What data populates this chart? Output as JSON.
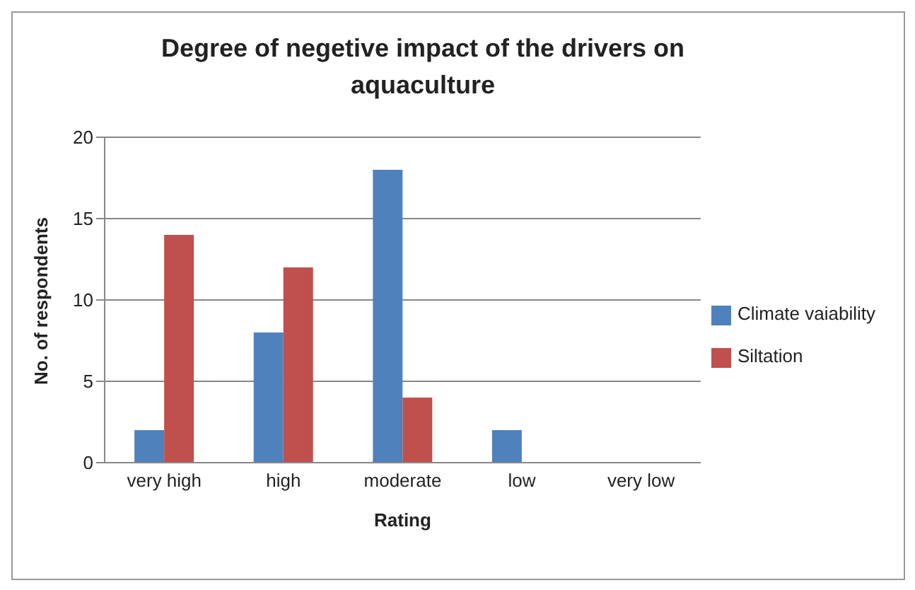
{
  "chart_data": {
    "type": "bar",
    "title": "Degree of negetive impact of the drivers on aquaculture",
    "xlabel": "Rating",
    "ylabel": "No. of respondents",
    "categories": [
      "very high",
      "high",
      "moderate",
      "low",
      "very low"
    ],
    "series": [
      {
        "name": "Climate vaiability",
        "color": "#4f81bd",
        "values": [
          2,
          8,
          18,
          2,
          0
        ]
      },
      {
        "name": "Siltation",
        "color": "#c0504d",
        "values": [
          14,
          12,
          4,
          0,
          0
        ]
      }
    ],
    "ylim": [
      0,
      20
    ],
    "yticks": [
      0,
      5,
      10,
      15,
      20
    ],
    "grid": "y",
    "legend": "right"
  }
}
